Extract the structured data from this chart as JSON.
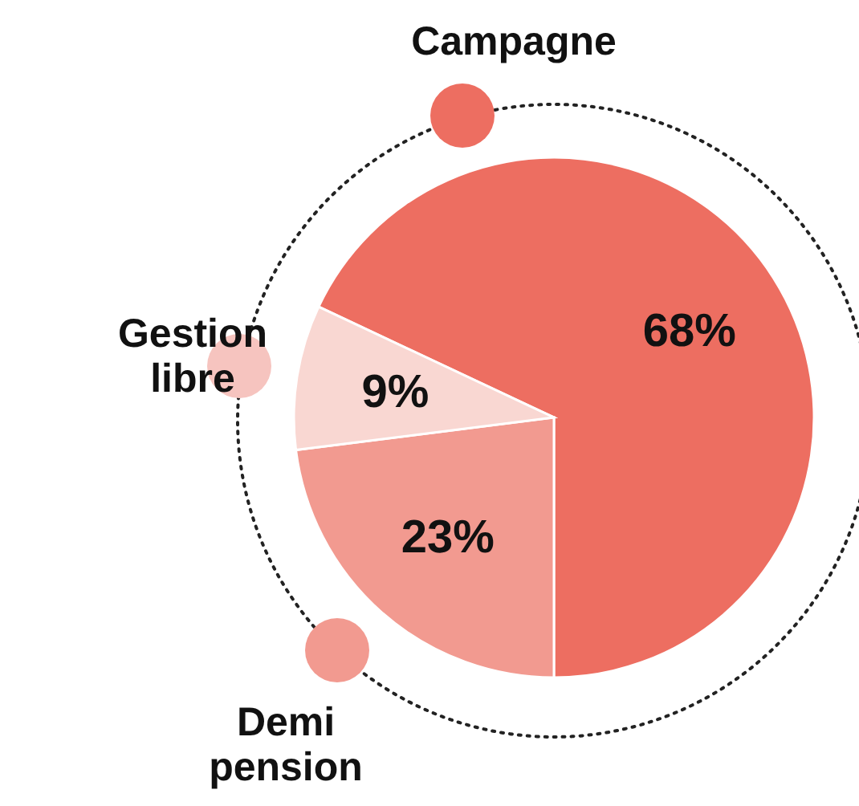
{
  "chart_data": {
    "type": "pie",
    "categories": [
      "Campagne",
      "Demi pension",
      "Gestion libre"
    ],
    "values": [
      68,
      23,
      9
    ],
    "colors": [
      "#ed6e61",
      "#f29a90",
      "#f9d7d2"
    ],
    "value_labels": [
      "68%",
      "23%",
      "9%"
    ]
  }
}
